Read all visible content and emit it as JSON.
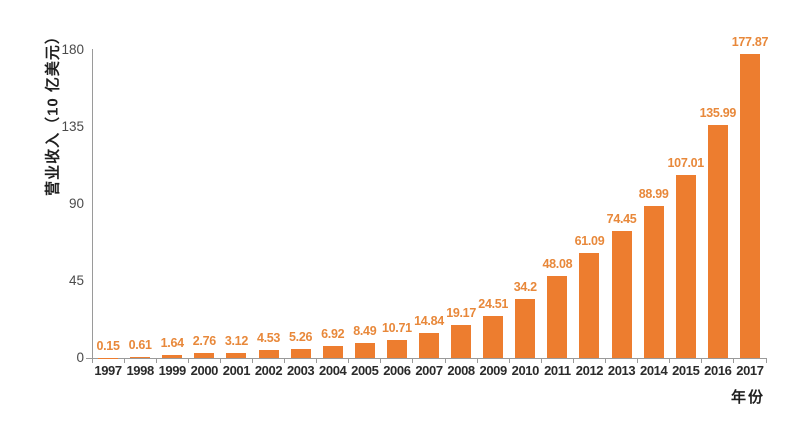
{
  "figure": {
    "background": "#ffffff"
  },
  "chart_data": {
    "type": "bar",
    "title": "",
    "ylabel": "营业收入（10 亿美元）",
    "xlabel": "年份",
    "categories": [
      "1997",
      "1998",
      "1999",
      "2000",
      "2001",
      "2002",
      "2003",
      "2004",
      "2005",
      "2006",
      "2007",
      "2008",
      "2009",
      "2010",
      "2011",
      "2012",
      "2013",
      "2014",
      "2015",
      "2016",
      "2017"
    ],
    "values": [
      0.15,
      0.61,
      1.64,
      2.76,
      3.12,
      4.53,
      5.26,
      6.92,
      8.49,
      10.71,
      14.84,
      19.17,
      24.51,
      34.2,
      48.08,
      61.09,
      74.45,
      88.99,
      107.01,
      135.99,
      177.87
    ],
    "value_labels": [
      "0.15",
      "0.61",
      "1.64",
      "2.76",
      "3.12",
      "4.53",
      "5.26",
      "6.92",
      "8.49",
      "10.71",
      "14.84",
      "19.17",
      "24.51",
      "34.2",
      "48.08",
      "61.09",
      "74.45",
      "88.99",
      "107.01",
      "135.99",
      "177.87"
    ],
    "yticks": [
      0,
      45,
      90,
      135,
      180
    ],
    "ytick_labels": [
      "0",
      "45",
      "90",
      "135",
      "180"
    ],
    "ylim": [
      0,
      180
    ],
    "grid": false,
    "legend": "none",
    "colors": {
      "bar": "#ED7D2F",
      "value_label": "#E8883A",
      "axis": "#9A9A9A",
      "ytick_label": "#4A4A4A",
      "xtick_label": "#2B2B2B",
      "axis_title": "#1F1F1F"
    }
  }
}
